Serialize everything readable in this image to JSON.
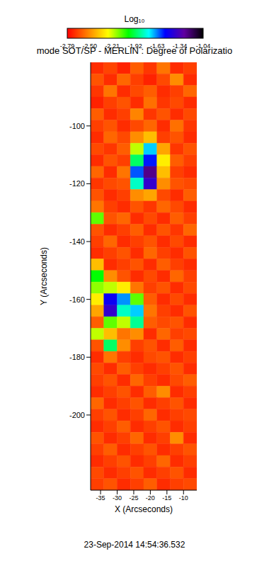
{
  "chart_data": {
    "type": "heatmap",
    "title": "mode SOT/SP - MERLIN : Degree of Polarizatio",
    "x_label": "X (Arcseconds)",
    "y_label": "Y (Arcseconds)",
    "annotation": "23-Sep-2014 14:54:36.532",
    "xlim": [
      -38,
      -6
    ],
    "xticks": [
      -35,
      -30,
      -25,
      -20,
      -15,
      -10
    ],
    "ylim": [
      -226,
      -78
    ],
    "yticks": [
      -100,
      -120,
      -140,
      -160,
      -180,
      -200
    ],
    "colorbar": {
      "label": "Log₁₀",
      "range": [
        -2.79,
        -1.04
      ],
      "ticks": [
        {
          "value": -2.79,
          "label": "-2.79"
        },
        {
          "value": -2.5,
          "label": "-2.50"
        },
        {
          "value": -2.21,
          "label": "-2.21"
        },
        {
          "value": -1.92,
          "label": "-1.92"
        },
        {
          "value": -1.63,
          "label": "-1.63"
        },
        {
          "value": -1.34,
          "label": "-1.34"
        },
        {
          "value": -1.04,
          "label": "-1.04"
        }
      ]
    },
    "x": [
      -36,
      -32,
      -28,
      -24,
      -20,
      -16,
      -12,
      -8
    ],
    "y": [
      -80,
      -84,
      -88,
      -92,
      -96,
      -100,
      -104,
      -108,
      -112,
      -116,
      -120,
      -124,
      -128,
      -132,
      -136,
      -140,
      -144,
      -148,
      -152,
      -156,
      -160,
      -164,
      -168,
      -172,
      -176,
      -180,
      -184,
      -188,
      -192,
      -196,
      -200,
      -204,
      -208,
      -212,
      -216,
      -220,
      -224
    ],
    "cells": [
      [
        -2.7,
        -2.65,
        -2.72,
        -2.6,
        -2.68,
        -2.55,
        -2.7,
        -2.66
      ],
      [
        -2.62,
        -2.7,
        -2.58,
        -2.66,
        -2.72,
        -2.64,
        -2.5,
        -2.7
      ],
      [
        -2.68,
        -2.55,
        -2.7,
        -2.64,
        -2.6,
        -2.7,
        -2.66,
        -2.58
      ],
      [
        -2.72,
        -2.66,
        -2.62,
        -2.7,
        -2.56,
        -2.68,
        -2.64,
        -2.7
      ],
      [
        -2.6,
        -2.7,
        -2.66,
        -2.52,
        -2.68,
        -2.62,
        -2.7,
        -2.64
      ],
      [
        -2.66,
        -2.62,
        -2.7,
        -2.64,
        -2.58,
        -2.7,
        -2.56,
        -2.68
      ],
      [
        -2.7,
        -2.58,
        -2.64,
        -2.5,
        -2.4,
        -2.66,
        -2.62,
        -2.7
      ],
      [
        -2.64,
        -2.68,
        -2.6,
        -2.2,
        -1.7,
        -2.45,
        -2.68,
        -2.62
      ],
      [
        -2.7,
        -2.62,
        -2.66,
        -1.9,
        -1.55,
        -2.3,
        -2.6,
        -2.66
      ],
      [
        -2.58,
        -2.7,
        -2.55,
        -1.6,
        -1.25,
        -2.4,
        -2.66,
        -2.7
      ],
      [
        -2.68,
        -2.64,
        -2.62,
        -1.8,
        -1.4,
        -2.5,
        -2.62,
        -2.64
      ],
      [
        -2.62,
        -2.7,
        -2.66,
        -2.5,
        -2.45,
        -2.64,
        -2.7,
        -2.6
      ],
      [
        -2.55,
        -2.66,
        -2.7,
        -2.62,
        -2.68,
        -2.58,
        -2.64,
        -2.7
      ],
      [
        -2.1,
        -2.62,
        -2.58,
        -2.7,
        -2.64,
        -2.7,
        -2.6,
        -2.66
      ],
      [
        -2.62,
        -2.7,
        -2.66,
        -2.6,
        -2.7,
        -2.62,
        -2.68,
        -2.58
      ],
      [
        -2.66,
        -2.58,
        -2.7,
        -2.66,
        -2.62,
        -2.7,
        -2.64,
        -2.7
      ],
      [
        -2.7,
        -2.66,
        -2.62,
        -2.7,
        -2.58,
        -2.66,
        -2.7,
        -2.62
      ],
      [
        -2.4,
        -2.7,
        -2.66,
        -2.62,
        -2.7,
        -2.6,
        -2.66,
        -2.7
      ],
      [
        -2.0,
        -2.5,
        -2.62,
        -2.7,
        -2.64,
        -2.7,
        -2.58,
        -2.66
      ],
      [
        -2.15,
        -2.2,
        -2.3,
        -2.55,
        -2.66,
        -2.62,
        -2.7,
        -2.64
      ],
      [
        -2.3,
        -1.5,
        -1.65,
        -2.1,
        -2.6,
        -2.7,
        -2.64,
        -2.7
      ],
      [
        -2.45,
        -1.4,
        -1.8,
        -1.7,
        -2.55,
        -2.66,
        -2.7,
        -2.62
      ],
      [
        -2.6,
        -2.1,
        -2.2,
        -1.85,
        -2.6,
        -2.64,
        -2.62,
        -2.7
      ],
      [
        -2.2,
        -2.4,
        -2.55,
        -2.5,
        -2.7,
        -2.58,
        -2.66,
        -2.64
      ],
      [
        -2.62,
        -1.9,
        -2.5,
        -2.66,
        -2.62,
        -2.7,
        -2.6,
        -2.7
      ],
      [
        -2.7,
        -2.55,
        -2.66,
        -2.7,
        -2.64,
        -2.62,
        -2.7,
        -2.66
      ],
      [
        -2.64,
        -2.7,
        -2.6,
        -2.66,
        -2.7,
        -2.66,
        -2.62,
        -2.7
      ],
      [
        -2.66,
        -2.62,
        -2.7,
        -2.58,
        -2.66,
        -2.7,
        -2.64,
        -2.6
      ],
      [
        -2.7,
        -2.66,
        -2.62,
        -2.7,
        -2.6,
        -2.5,
        -2.7,
        -2.66
      ],
      [
        -2.58,
        -2.7,
        -2.66,
        -2.62,
        -2.7,
        -2.66,
        -2.62,
        -2.7
      ],
      [
        -2.66,
        -2.62,
        -2.7,
        -2.66,
        -2.58,
        -2.7,
        -2.66,
        -2.64
      ],
      [
        -2.7,
        -2.66,
        -2.6,
        -2.7,
        -2.66,
        -2.62,
        -2.7,
        -2.66
      ],
      [
        -2.62,
        -2.7,
        -2.66,
        -2.58,
        -2.7,
        -2.66,
        -2.5,
        -2.7
      ],
      [
        -2.66,
        -2.6,
        -2.7,
        -2.66,
        -2.62,
        -2.7,
        -2.66,
        -2.62
      ],
      [
        -2.7,
        -2.66,
        -2.62,
        -2.7,
        -2.66,
        -2.58,
        -2.7,
        -2.66
      ],
      [
        -2.64,
        -2.7,
        -2.66,
        -2.62,
        -2.7,
        -2.66,
        -2.62,
        -2.7
      ],
      [
        -2.66,
        -2.62,
        -2.7,
        -2.66,
        -2.6,
        -2.7,
        -2.66,
        -2.64
      ]
    ]
  }
}
